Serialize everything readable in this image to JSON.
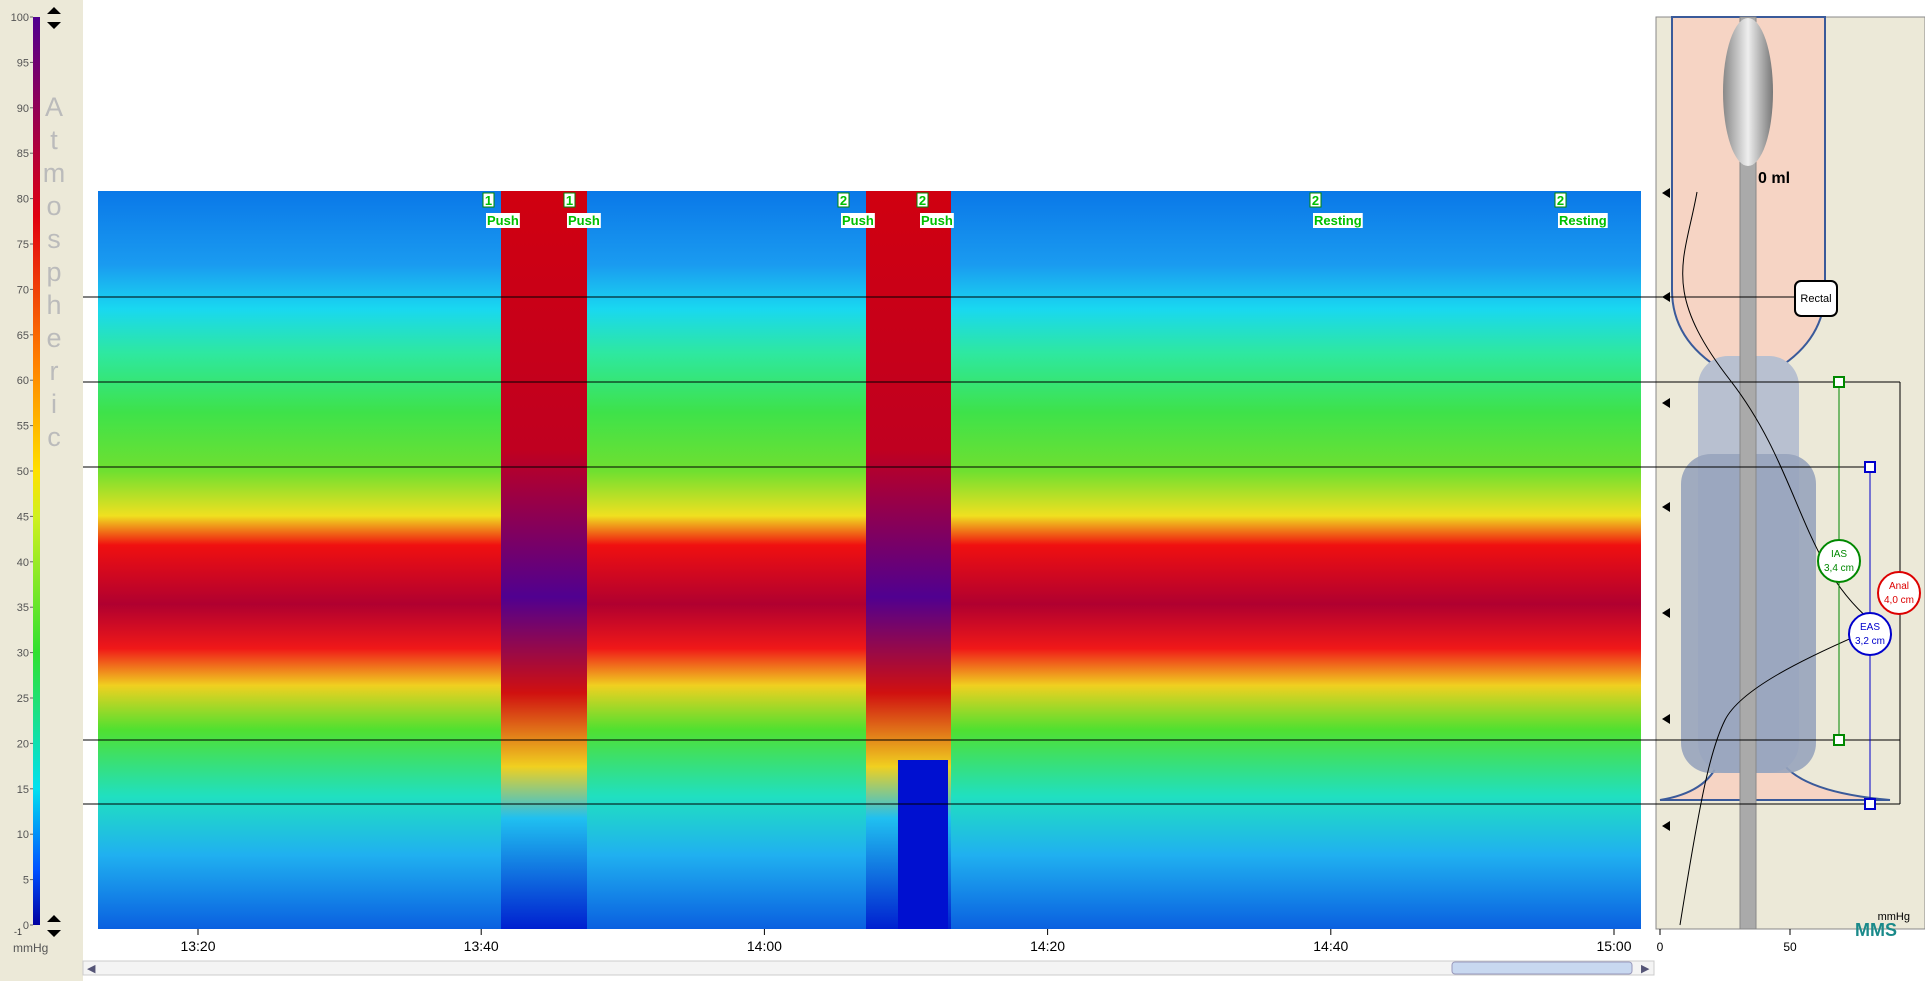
{
  "colorbar": {
    "lim": [
      0,
      100
    ],
    "ticks": [
      0,
      5,
      10,
      15,
      20,
      25,
      30,
      35,
      40,
      45,
      50,
      55,
      60,
      65,
      70,
      75,
      80,
      85,
      90,
      95,
      100
    ],
    "below": "-1",
    "unit": "mmHg",
    "label": "Atmospheric"
  },
  "time_axis": {
    "ticks": [
      "13:20",
      "13:40",
      "14:00",
      "14:20",
      "14:40",
      "15:00"
    ]
  },
  "events": [
    {
      "number": "1",
      "label": "Push"
    },
    {
      "number": "1",
      "label": "Push"
    },
    {
      "number": "2",
      "label": "Push"
    },
    {
      "number": "2",
      "label": "Push"
    },
    {
      "number": "2",
      "label": "Resting"
    },
    {
      "number": "2",
      "label": "Resting"
    }
  ],
  "panel": {
    "volume": "0 ml",
    "rectal": "Rectal",
    "ias": {
      "name": "IAS",
      "length": "3,4 cm"
    },
    "anal": {
      "name": "Anal",
      "length": "4,0 cm"
    },
    "eas": {
      "name": "EAS",
      "length": "3,2 cm"
    },
    "x_ticks": [
      0,
      50
    ],
    "x_unit": "mmHg"
  },
  "logo": "MMS"
}
